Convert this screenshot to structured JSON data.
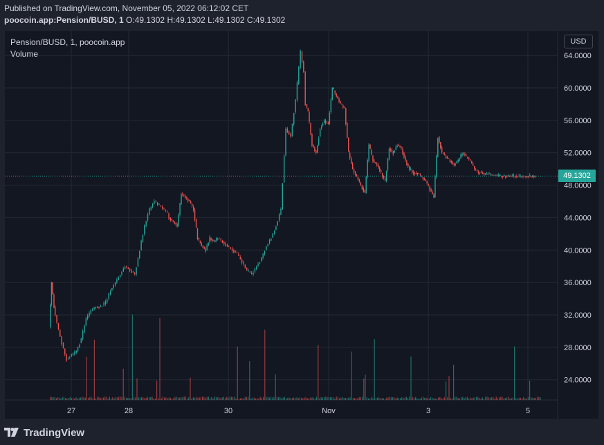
{
  "header": {
    "published": "Published on TradingView.com, November 05, 2022 06:12:02 CET",
    "symbol": "poocoin.app:Pension/BUSD, 1",
    "o_label": "O:",
    "o_value": "49.1302",
    "h_label": "H:",
    "h_value": "49.1302",
    "l_label": "L:",
    "l_value": "49.1302",
    "c_label": "C:",
    "c_value": "49.1302"
  },
  "legend": {
    "title": "Pension/BUSD, 1, poocoin.app",
    "volume": "Volume"
  },
  "currency_button": "USD",
  "footer": {
    "brand": "TradingView"
  },
  "colors": {
    "up": "#26a69a",
    "down": "#ef5350",
    "background": "#131722",
    "grid": "#242833",
    "text": "#d1d4dc"
  },
  "icons": [
    "tradingview-logo-icon"
  ],
  "chart_data": {
    "type": "line",
    "style": "candlestick",
    "y_ticks": [
      "64.0000",
      "60.0000",
      "56.0000",
      "52.0000",
      "48.0000",
      "44.0000",
      "40.0000",
      "36.0000",
      "32.0000",
      "28.0000",
      "24.0000"
    ],
    "x_ticks": [
      "27",
      "28",
      "30",
      "Nov",
      "3",
      "5"
    ],
    "last_price": "49.1302",
    "ylim": [
      21.5,
      67.0
    ],
    "series": [
      {
        "x": [
          0,
          0.3,
          0.6,
          1.0,
          1.6,
          2.2,
          2.8,
          3.4,
          4.0,
          4.6,
          5.2,
          5.8,
          6.4,
          7.0,
          7.6,
          8.2,
          8.8,
          9.4,
          10.0,
          10.6,
          11.2,
          11.8,
          12.4,
          13.0,
          13.6,
          14.2,
          14.6,
          14.8,
          15.3,
          15.8,
          16.3,
          16.8,
          17.3,
          17.8,
          18.3,
          18.8,
          19.3,
          19.8,
          20.3,
          20.8,
          21.4,
          22.0,
          22.6,
          23.2,
          23.8,
          24.4,
          25.0,
          25.6,
          26.2,
          26.8,
          27.4,
          28.0,
          28.6,
          29.2,
          29.8,
          30.4,
          31.0,
          31.4,
          31.6,
          31.9,
          32.4,
          32.9,
          33.4,
          33.9,
          34.4,
          34.9,
          35.4,
          35.9,
          36.4,
          36.9,
          37.4,
          37.9,
          38.4,
          38.9,
          39.4,
          39.9,
          40.4,
          40.9,
          41.4,
          41.9,
          42.4,
          42.9,
          43.4,
          43.9,
          44.4,
          44.9,
          45.4,
          45.9,
          46.4,
          46.9,
          47.4,
          47.9,
          48.4,
          48.9,
          49.4,
          49.9,
          50.4,
          50.9,
          51.4,
          51.9,
          52.4,
          52.9,
          53.4,
          53.9,
          54.4,
          54.9,
          55.4,
          55.9,
          56.4,
          56.9,
          57.4,
          57.9,
          58.4,
          58.9,
          59.4,
          59.9
        ],
        "values": [
          30.5,
          36.0,
          33.0,
          31.0,
          28.5,
          26.5,
          27.0,
          27.5,
          29.0,
          31.5,
          32.5,
          33.0,
          33.0,
          33.5,
          35.0,
          36.0,
          37.0,
          38.0,
          37.5,
          37.0,
          40.0,
          43.0,
          45.0,
          46.0,
          45.5,
          45.0,
          44.5,
          44.0,
          43.5,
          43.0,
          47.0,
          46.5,
          46.0,
          45.0,
          41.5,
          40.5,
          40.0,
          41.5,
          41.0,
          41.5,
          41.0,
          40.5,
          40.0,
          39.5,
          38.5,
          37.5,
          37.0,
          38.0,
          39.0,
          40.5,
          41.5,
          43.0,
          45.0,
          55.0,
          54.0,
          58.5,
          64.5,
          62.0,
          58.0,
          57.0,
          53.0,
          52.0,
          55.0,
          56.0,
          55.5,
          60.0,
          59.0,
          58.0,
          57.5,
          52.0,
          50.0,
          49.0,
          48.0,
          47.0,
          53.0,
          51.0,
          50.5,
          49.5,
          48.5,
          52.5,
          52.0,
          53.0,
          52.5,
          51.0,
          50.0,
          49.5,
          49.5,
          49.0,
          48.5,
          47.5,
          46.5,
          54.0,
          52.0,
          51.5,
          51.0,
          50.5,
          51.0,
          52.0,
          51.5,
          51.0,
          50.0,
          49.5,
          49.5,
          49.4,
          49.3,
          49.2,
          49.15,
          49.14,
          49.13,
          49.1302,
          49.1302,
          49.1302,
          49.1302,
          49.1302,
          49.1302,
          49.1302
        ]
      }
    ],
    "volume_ylim": [
      0,
      100
    ]
  }
}
